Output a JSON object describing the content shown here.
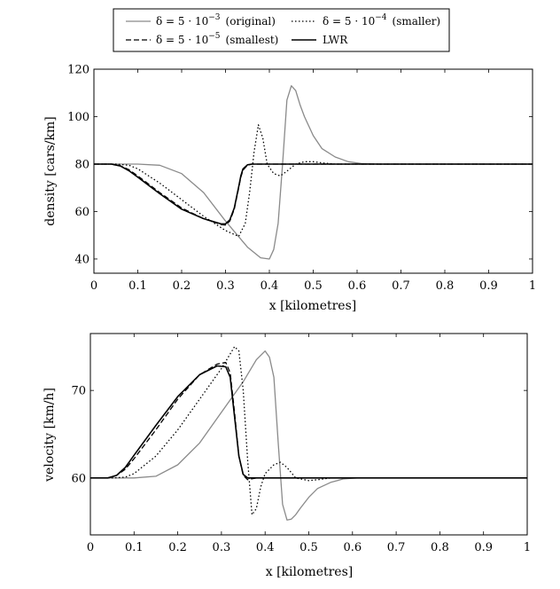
{
  "legend": {
    "entries": [
      {
        "series": "orig",
        "delta": "δ = 5 · 10",
        "exp": "−3",
        "note": "(original)"
      },
      {
        "series": "small",
        "delta": "δ = 5 · 10",
        "exp": "−4",
        "note": "(smaller)"
      },
      {
        "series": "smallest",
        "delta": "δ = 5 · 10",
        "exp": "−5",
        "note": "(smallest)"
      },
      {
        "series": "lwr",
        "text": "LWR"
      }
    ]
  },
  "styles": {
    "orig": {
      "color": "#8a8a8a",
      "dash": ""
    },
    "small": {
      "color": "#000000",
      "dash": "1.5,2.5"
    },
    "smallest": {
      "color": "#000000",
      "dash": "6,3"
    },
    "lwr": {
      "color": "#000000",
      "dash": ""
    }
  },
  "chart_data": [
    {
      "type": "line",
      "xlabel": "x [kilometres]",
      "ylabel": "density [cars/km]",
      "xlim": [
        0,
        1
      ],
      "ylim": [
        34,
        120
      ],
      "xticks": [
        0,
        0.1,
        0.2,
        0.3,
        0.4,
        0.5,
        0.6,
        0.7,
        0.8,
        0.9,
        1
      ],
      "xtick_labels": [
        "0",
        "0.1",
        "0.2",
        "0.3",
        "0.4",
        "0.5",
        "0.6",
        "0.7",
        "0.8",
        "0.9",
        "1"
      ],
      "yticks": [
        40,
        60,
        80,
        100,
        120
      ],
      "ytick_labels": [
        "40",
        "60",
        "80",
        "100",
        "120"
      ],
      "series": [
        {
          "key": "orig",
          "name": "δ = 5·10^-3 (original)",
          "x": [
            0,
            0.05,
            0.1,
            0.15,
            0.2,
            0.25,
            0.3,
            0.35,
            0.38,
            0.4,
            0.41,
            0.42,
            0.43,
            0.44,
            0.45,
            0.46,
            0.47,
            0.48,
            0.5,
            0.52,
            0.55,
            0.58,
            0.61,
            0.65,
            0.7,
            1
          ],
          "y": [
            80,
            80,
            80,
            79.5,
            76,
            68,
            56,
            45,
            40.5,
            40,
            44,
            55,
            80,
            107,
            113,
            111,
            105,
            100,
            92,
            86.5,
            83,
            81,
            80.2,
            80,
            80,
            80
          ]
        },
        {
          "key": "small",
          "name": "δ = 5·10^-4 (smaller)",
          "x": [
            0,
            0.05,
            0.08,
            0.1,
            0.15,
            0.2,
            0.25,
            0.3,
            0.33,
            0.345,
            0.355,
            0.365,
            0.375,
            0.385,
            0.395,
            0.41,
            0.425,
            0.44,
            0.46,
            0.48,
            0.5,
            0.52,
            0.55,
            0.6,
            1
          ],
          "y": [
            80,
            80,
            79.5,
            78,
            72,
            65,
            58,
            52,
            49.5,
            55,
            68,
            85,
            96.5,
            91,
            80,
            76,
            75,
            77,
            80,
            81,
            81,
            80.5,
            80,
            80,
            80
          ]
        },
        {
          "key": "smallest",
          "name": "δ = 5·10^-5 (smallest)",
          "x": [
            0,
            0.04,
            0.06,
            0.08,
            0.1,
            0.15,
            0.2,
            0.25,
            0.29,
            0.3,
            0.31,
            0.32,
            0.33,
            0.335,
            0.34,
            0.35,
            0.36,
            0.38,
            0.4,
            1
          ],
          "y": [
            80,
            80,
            79.3,
            77.6,
            75,
            68,
            61.5,
            57,
            54.5,
            54.3,
            56,
            61,
            70,
            74.5,
            77.5,
            79.5,
            80,
            80,
            80,
            80
          ]
        },
        {
          "key": "lwr",
          "name": "LWR",
          "x": [
            0,
            0.04,
            0.06,
            0.08,
            0.1,
            0.15,
            0.2,
            0.25,
            0.29,
            0.3,
            0.31,
            0.32,
            0.33,
            0.335,
            0.34,
            0.35,
            0.36,
            0.38,
            0.4,
            1
          ],
          "y": [
            80,
            80,
            79.2,
            77.2,
            74.5,
            67.5,
            61,
            57,
            54.8,
            54.8,
            56.5,
            61.5,
            70.5,
            75,
            78,
            79.7,
            80,
            80,
            80,
            80
          ]
        }
      ]
    },
    {
      "type": "line",
      "xlabel": "x [kilometres]",
      "ylabel": "velocity [km/h]",
      "xlim": [
        0,
        1
      ],
      "ylim": [
        53.5,
        76.5
      ],
      "xticks": [
        0,
        0.1,
        0.2,
        0.3,
        0.4,
        0.5,
        0.6,
        0.7,
        0.8,
        0.9,
        1
      ],
      "xtick_labels": [
        "0",
        "0.1",
        "0.2",
        "0.3",
        "0.4",
        "0.5",
        "0.6",
        "0.7",
        "0.8",
        "0.9",
        "1"
      ],
      "yticks": [
        60,
        70
      ],
      "ytick_labels": [
        "60",
        "70"
      ],
      "series": [
        {
          "key": "orig",
          "name": "δ = 5·10^-3 (original)",
          "x": [
            0,
            0.05,
            0.1,
            0.15,
            0.2,
            0.25,
            0.3,
            0.35,
            0.38,
            0.4,
            0.41,
            0.42,
            0.43,
            0.44,
            0.45,
            0.46,
            0.47,
            0.48,
            0.5,
            0.52,
            0.55,
            0.58,
            0.61,
            0.65,
            0.7,
            1
          ],
          "y": [
            60,
            60,
            60,
            60.2,
            61.5,
            64,
            67.5,
            71,
            73.5,
            74.5,
            73.8,
            71.5,
            64,
            57,
            55.2,
            55.3,
            55.8,
            56.5,
            57.8,
            58.8,
            59.5,
            59.9,
            60,
            60,
            60,
            60
          ]
        },
        {
          "key": "small",
          "name": "δ = 5·10^-4 (smaller)",
          "x": [
            0,
            0.05,
            0.08,
            0.1,
            0.15,
            0.2,
            0.25,
            0.3,
            0.33,
            0.34,
            0.35,
            0.36,
            0.37,
            0.38,
            0.39,
            0.4,
            0.42,
            0.435,
            0.45,
            0.47,
            0.5,
            0.52,
            0.55,
            0.6,
            1
          ],
          "y": [
            60,
            60,
            60.1,
            60.5,
            62.5,
            65.5,
            69,
            72.5,
            75,
            74.5,
            70,
            62,
            55.8,
            56.5,
            59,
            60.5,
            61.5,
            61.8,
            61.2,
            60,
            59.7,
            59.8,
            60,
            60,
            60
          ]
        },
        {
          "key": "smallest",
          "name": "δ = 5·10^-5 (smallest)",
          "x": [
            0,
            0.04,
            0.06,
            0.08,
            0.1,
            0.15,
            0.2,
            0.25,
            0.29,
            0.31,
            0.32,
            0.33,
            0.34,
            0.35,
            0.36,
            0.38,
            0.4,
            1
          ],
          "y": [
            60,
            60,
            60.3,
            61,
            62.2,
            65.5,
            69,
            71.8,
            73,
            73.2,
            72,
            67.5,
            62.5,
            60.3,
            59.8,
            60,
            60,
            60
          ]
        },
        {
          "key": "lwr",
          "name": "LWR",
          "x": [
            0,
            0.04,
            0.06,
            0.08,
            0.1,
            0.15,
            0.2,
            0.25,
            0.29,
            0.31,
            0.32,
            0.33,
            0.34,
            0.35,
            0.36,
            0.38,
            0.4,
            1
          ],
          "y": [
            60,
            60,
            60.3,
            61.2,
            62.6,
            66,
            69.3,
            71.8,
            72.8,
            72.7,
            71.5,
            67,
            62.5,
            60.4,
            60,
            60,
            60,
            60
          ]
        }
      ]
    }
  ]
}
